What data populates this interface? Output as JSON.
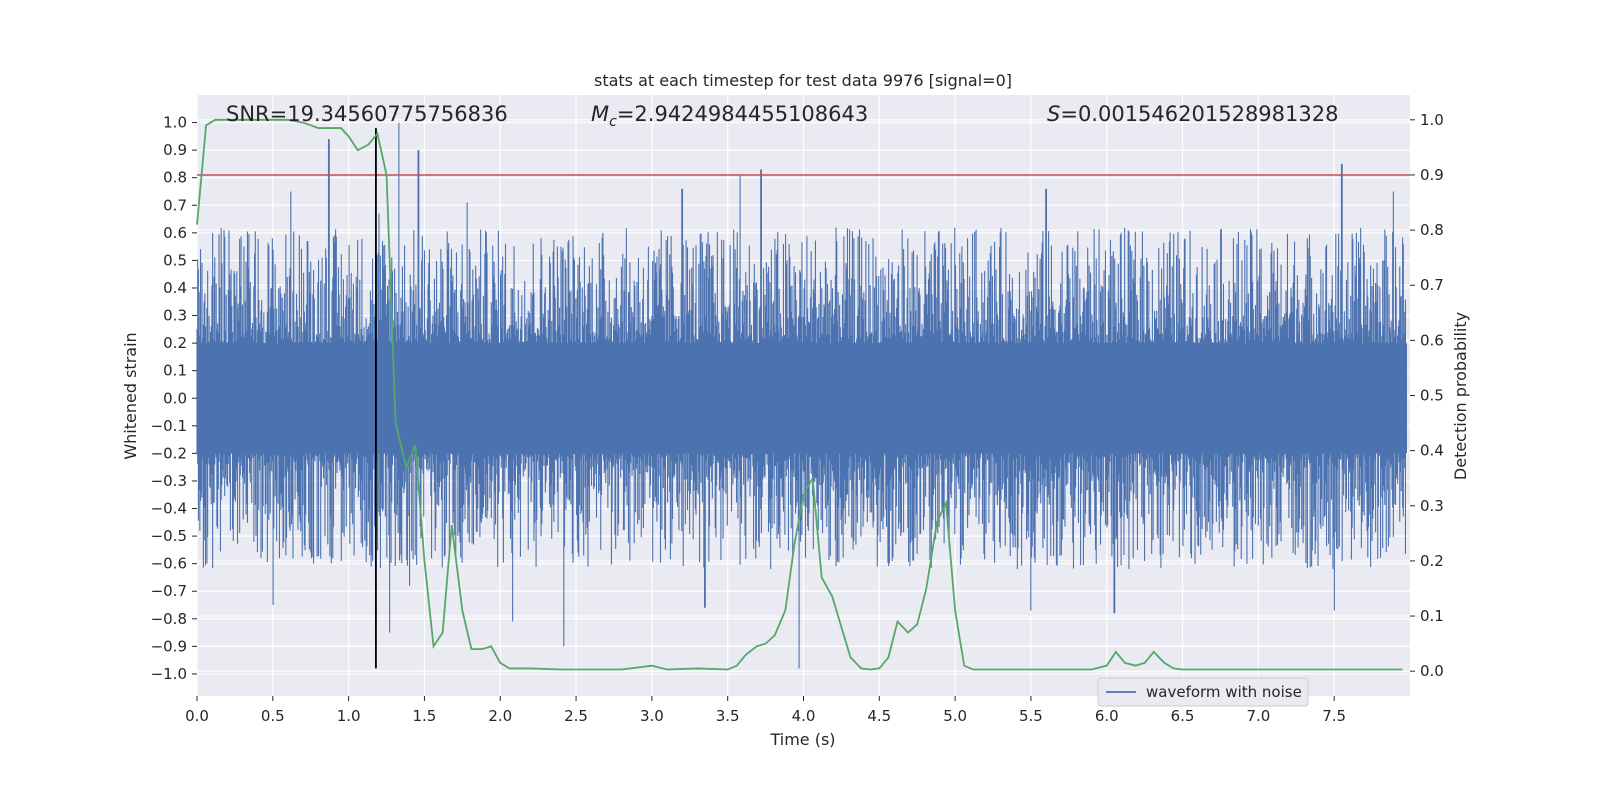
{
  "chart_data": {
    "type": "line",
    "title": "stats at each timestep for test data 9976 [signal=0]",
    "xlabel": "Time (s)",
    "ylabel": "Whitened strain",
    "y2label": "Detection probability",
    "xlim": [
      0.0,
      8.0
    ],
    "ylim": [
      -1.08,
      1.1
    ],
    "y2lim": [
      -0.045,
      1.045
    ],
    "grid": true,
    "x_ticks": [
      0.0,
      0.5,
      1.0,
      1.5,
      2.0,
      2.5,
      3.0,
      3.5,
      4.0,
      4.5,
      5.0,
      5.5,
      6.0,
      6.5,
      7.0,
      7.5
    ],
    "x_tick_labels": [
      "0.0",
      "0.5",
      "1.0",
      "1.5",
      "2.0",
      "2.5",
      "3.0",
      "3.5",
      "4.0",
      "4.5",
      "5.0",
      "5.5",
      "6.0",
      "6.5",
      "7.0",
      "7.5"
    ],
    "y_ticks": [
      1.0,
      0.9,
      0.8,
      0.7,
      0.6,
      0.5,
      0.4,
      0.3,
      0.2,
      0.1,
      0.0,
      -0.1,
      -0.2,
      -0.3,
      -0.4,
      -0.5,
      -0.6,
      -0.7,
      -0.8,
      -0.9,
      -1.0
    ],
    "y_tick_labels": [
      "1.0",
      "0.9",
      "0.8",
      "0.7",
      "0.6",
      "0.5",
      "0.4",
      "0.3",
      "0.2",
      "0.1",
      "0.0",
      "−0.1",
      "−0.2",
      "−0.3",
      "−0.4",
      "−0.5",
      "−0.6",
      "−0.7",
      "−0.8",
      "−0.9",
      "−1.0"
    ],
    "y2_ticks": [
      1.0,
      0.9,
      0.8,
      0.7,
      0.6,
      0.5,
      0.4,
      0.3,
      0.2,
      0.1,
      0.0
    ],
    "y2_tick_labels": [
      "1.0",
      "0.9",
      "0.8",
      "0.7",
      "0.6",
      "0.5",
      "0.4",
      "0.3",
      "0.2",
      "0.1",
      "0.0"
    ],
    "annotations": {
      "snr_label": "SNR=19.34560775756836",
      "mc_symbol": "M",
      "mc_subscript": "c",
      "mc_value": "=2.9424984455108643",
      "s_symbol": "S",
      "s_value": "=0.001546201528981328"
    },
    "threshold": {
      "y2": 0.9,
      "color": "#c44e52"
    },
    "vertical_marker": {
      "x": 1.18,
      "y_from": -0.98,
      "y_to": 0.98,
      "color": "#000000"
    },
    "waveform": {
      "name": "waveform with noise",
      "color": "#4c72b0",
      "envelope": 0.2,
      "extremes": [
        {
          "x": 0.87,
          "y": 0.94
        },
        {
          "x": 1.33,
          "y": 1.0
        },
        {
          "x": 1.46,
          "y": 0.9
        },
        {
          "x": 1.2,
          "y": 0.67
        },
        {
          "x": 0.62,
          "y": 0.75
        },
        {
          "x": 1.78,
          "y": 0.71
        },
        {
          "x": 3.2,
          "y": 0.76
        },
        {
          "x": 3.58,
          "y": 0.81
        },
        {
          "x": 3.72,
          "y": 0.83
        },
        {
          "x": 5.6,
          "y": 0.76
        },
        {
          "x": 7.55,
          "y": 0.85
        },
        {
          "x": 7.89,
          "y": 0.75
        },
        {
          "x": 3.97,
          "y": -0.98
        },
        {
          "x": 2.42,
          "y": -0.9
        },
        {
          "x": 1.27,
          "y": -0.85
        },
        {
          "x": 0.5,
          "y": -0.75
        },
        {
          "x": 2.08,
          "y": -0.81
        },
        {
          "x": 5.5,
          "y": -0.77
        },
        {
          "x": 6.05,
          "y": -0.78
        },
        {
          "x": 7.5,
          "y": -0.77
        },
        {
          "x": 3.35,
          "y": -0.76
        },
        {
          "x": 1.4,
          "y": -0.68
        }
      ]
    },
    "probability": {
      "name": "detection probability",
      "color": "#55a868",
      "x": [
        0.0,
        0.06,
        0.12,
        0.2,
        0.3,
        0.4,
        0.5,
        0.6,
        0.7,
        0.8,
        0.9,
        0.95,
        1.0,
        1.06,
        1.13,
        1.19,
        1.25,
        1.31,
        1.38,
        1.44,
        1.5,
        1.56,
        1.62,
        1.68,
        1.75,
        1.81,
        1.88,
        1.94,
        2.0,
        2.06,
        2.2,
        2.4,
        2.6,
        2.8,
        3.0,
        3.1,
        3.3,
        3.5,
        3.56,
        3.62,
        3.69,
        3.75,
        3.81,
        3.88,
        3.94,
        4.0,
        4.06,
        4.12,
        4.19,
        4.25,
        4.31,
        4.38,
        4.44,
        4.5,
        4.56,
        4.62,
        4.69,
        4.75,
        4.81,
        4.88,
        4.94,
        5.0,
        5.06,
        5.12,
        5.3,
        5.6,
        5.9,
        6.0,
        6.06,
        6.12,
        6.19,
        6.25,
        6.31,
        6.38,
        6.44,
        6.5,
        6.6,
        6.7,
        7.0,
        7.3,
        7.6,
        7.95
      ],
      "y": [
        0.81,
        0.99,
        1.0,
        1.0,
        1.0,
        1.0,
        1.0,
        1.0,
        0.995,
        0.985,
        0.985,
        0.985,
        0.97,
        0.945,
        0.955,
        0.975,
        0.9,
        0.45,
        0.37,
        0.41,
        0.2,
        0.045,
        0.07,
        0.265,
        0.11,
        0.04,
        0.04,
        0.045,
        0.015,
        0.005,
        0.005,
        0.003,
        0.003,
        0.003,
        0.01,
        0.003,
        0.005,
        0.003,
        0.01,
        0.03,
        0.045,
        0.05,
        0.065,
        0.11,
        0.23,
        0.32,
        0.35,
        0.17,
        0.135,
        0.08,
        0.025,
        0.005,
        0.003,
        0.005,
        0.025,
        0.09,
        0.07,
        0.085,
        0.15,
        0.27,
        0.305,
        0.11,
        0.01,
        0.003,
        0.003,
        0.003,
        0.003,
        0.01,
        0.035,
        0.015,
        0.01,
        0.015,
        0.035,
        0.015,
        0.005,
        0.003,
        0.003,
        0.003,
        0.003,
        0.003,
        0.003,
        0.003
      ]
    },
    "legend": {
      "label": "waveform with noise",
      "position": "lower right"
    }
  }
}
